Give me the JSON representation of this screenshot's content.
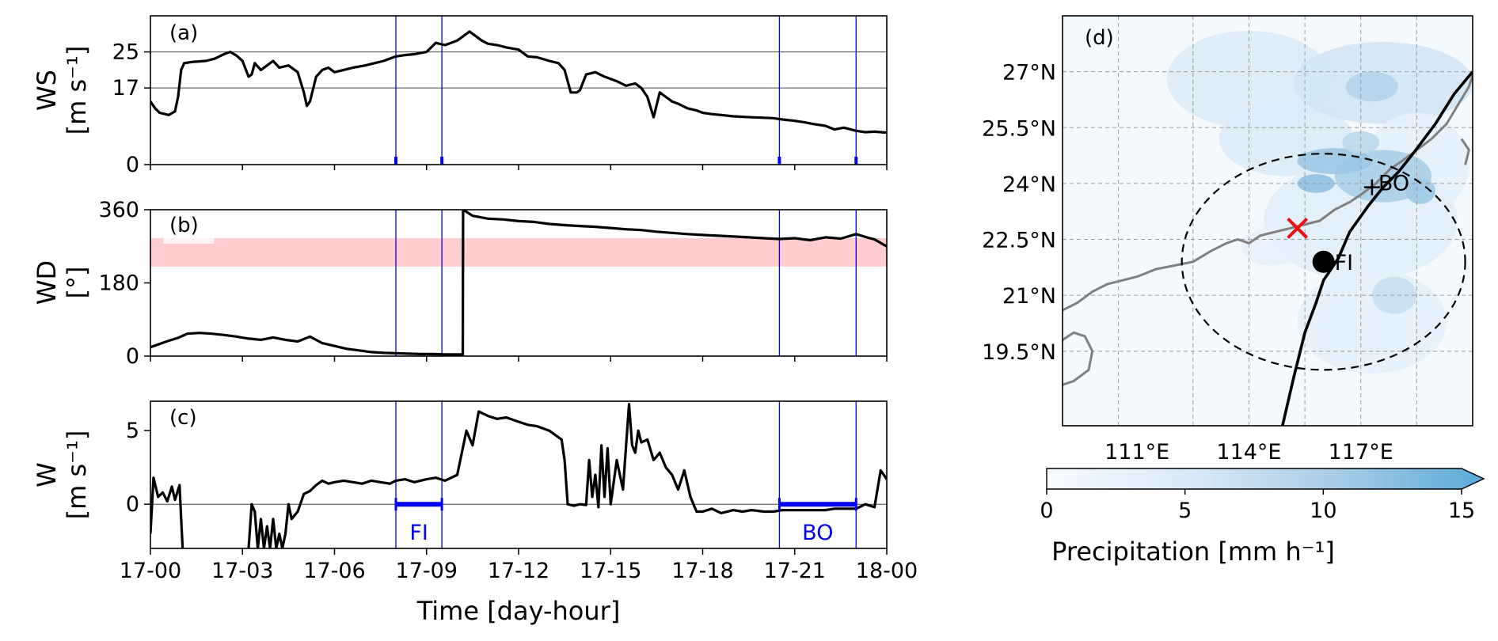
{
  "chart_data": [
    {
      "type": "line",
      "panel_label": "(a)",
      "ylabel": [
        "WS",
        "[m s⁻¹]"
      ],
      "ylim": [
        0,
        33
      ],
      "yticks": [
        "0",
        "17",
        "25"
      ],
      "yticks_values": [
        0,
        17,
        25
      ],
      "hlines": [
        17,
        25
      ],
      "x_range": [
        0,
        24
      ],
      "series": [
        {
          "x": [
            0,
            0.15,
            0.3,
            0.6,
            0.8,
            0.9,
            1.0,
            1.1,
            1.4,
            1.8,
            2.1,
            2.4,
            2.6,
            2.8,
            3.0,
            3.2,
            3.3,
            3.4,
            3.6,
            3.8,
            4.0,
            4.2,
            4.5,
            4.8,
            5.0,
            5.1,
            5.2,
            5.4,
            5.6,
            5.8,
            6.0,
            6.3,
            6.6,
            7.0,
            7.3,
            7.6,
            8.0,
            8.3,
            8.6,
            9.0,
            9.3,
            9.6,
            10.0,
            10.2,
            10.4,
            10.6,
            10.8,
            11.0,
            11.3,
            11.6,
            12.0,
            12.3,
            12.6,
            13.0,
            13.3,
            13.5,
            13.7,
            13.9,
            14.0,
            14.2,
            14.5,
            14.8,
            15.0,
            15.2,
            15.5,
            15.8,
            16.0,
            16.2,
            16.4,
            16.6,
            16.8,
            17.0,
            17.2,
            17.5,
            17.8,
            18.0,
            18.3,
            18.6,
            19.0,
            19.3,
            19.6,
            20.0,
            20.3,
            20.6,
            21.0,
            21.3,
            21.6,
            22.0,
            22.3,
            22.6,
            23.0,
            23.3,
            23.6,
            24.0
          ],
          "y": [
            14,
            12.5,
            11.5,
            11,
            11.8,
            15,
            21,
            22.5,
            22.8,
            23,
            23.5,
            24.5,
            25,
            24.2,
            23,
            19.5,
            20,
            22.5,
            21,
            22,
            23,
            21.5,
            22,
            20.5,
            16,
            13,
            14,
            19.5,
            21,
            21.5,
            20.5,
            21,
            21.5,
            22,
            22.5,
            23,
            24,
            24.3,
            24.5,
            25,
            27,
            26.5,
            27.5,
            28.5,
            29.5,
            28.5,
            27.5,
            26.8,
            26.5,
            26,
            25.5,
            24,
            23.8,
            23,
            22.5,
            21,
            16,
            16,
            16.5,
            20,
            20.5,
            19.5,
            19,
            18.5,
            17.5,
            18,
            17,
            15,
            10.5,
            16,
            15,
            14,
            13.5,
            12.5,
            12,
            11.5,
            11.2,
            11,
            10.7,
            10.6,
            10.5,
            10.4,
            10.3,
            10.0,
            9.7,
            9.4,
            9.0,
            8.6,
            7.8,
            8.2,
            7.5,
            7.2,
            7.3,
            7.1
          ]
        }
      ]
    },
    {
      "type": "line",
      "panel_label": "(b)",
      "ylabel": [
        "WD",
        "[°]"
      ],
      "ylim": [
        0,
        360
      ],
      "yticks": [
        "0",
        "180",
        "360"
      ],
      "yticks_values": [
        0,
        180,
        360
      ],
      "shaded_band": [
        220,
        290
      ],
      "x_range": [
        0,
        24
      ],
      "series": [
        {
          "x": [
            0,
            0.3,
            0.6,
            0.9,
            1.2,
            1.6,
            2.0,
            2.4,
            2.8,
            3.2,
            3.6,
            4.0,
            4.4,
            4.8,
            5.2,
            5.6,
            6.0,
            6.4,
            6.8,
            7.2,
            7.6,
            8.0,
            8.4,
            8.8,
            9.2,
            9.6,
            10.0,
            10.18,
            10.19,
            10.5,
            11.0,
            11.5,
            12.0,
            12.5,
            13.0,
            13.5,
            14.0,
            14.5,
            15.0,
            15.5,
            16.0,
            16.5,
            17.0,
            17.5,
            18.0,
            18.5,
            19.0,
            19.5,
            20.0,
            20.5,
            21.0,
            21.5,
            22.0,
            22.5,
            23.0,
            23.3,
            23.6,
            24.0
          ],
          "y": [
            22,
            30,
            38,
            45,
            55,
            57,
            55,
            52,
            48,
            43,
            40,
            46,
            40,
            36,
            48,
            32,
            25,
            18,
            14,
            10,
            8,
            7,
            6,
            5,
            5,
            4,
            4,
            4,
            360,
            345,
            338,
            336,
            332,
            330,
            325,
            322,
            320,
            318,
            315,
            312,
            310,
            306,
            303,
            300,
            298,
            296,
            294,
            292,
            290,
            288,
            290,
            285,
            292,
            289,
            300,
            293,
            287,
            270
          ]
        }
      ]
    },
    {
      "type": "line",
      "panel_label": "(c)",
      "ylabel": [
        "W",
        "[m s⁻¹]"
      ],
      "ylim": [
        -3,
        7
      ],
      "yticks": [
        "0",
        "5"
      ],
      "yticks_values": [
        0,
        5
      ],
      "hlines": [
        0
      ],
      "x_range": [
        0,
        24
      ],
      "xticks": [
        "17-00",
        "17-03",
        "17-06",
        "17-09",
        "17-12",
        "17-15",
        "17-18",
        "17-21",
        "18-00"
      ],
      "xlabel": "Time [day-hour]",
      "series": [
        {
          "x": [
            0,
            0.1,
            0.25,
            0.4,
            0.55,
            0.7,
            0.8,
            0.95,
            1.0,
            1.05,
            3.2,
            3.3,
            3.4,
            3.5,
            3.6,
            3.7,
            3.8,
            3.9,
            4.0,
            4.1,
            4.2,
            4.3,
            4.4,
            4.5,
            4.6,
            4.8,
            5.0,
            5.2,
            5.4,
            5.6,
            5.8,
            6.0,
            6.3,
            6.6,
            6.9,
            7.2,
            7.5,
            7.8,
            8.0,
            8.3,
            8.6,
            9.0,
            9.3,
            9.6,
            10.0,
            10.3,
            10.5,
            10.7,
            11.0,
            11.3,
            11.6,
            12.0,
            12.3,
            12.6,
            13.0,
            13.2,
            13.4,
            13.5,
            13.6,
            13.8,
            14.0,
            14.2,
            14.3,
            14.4,
            14.5,
            14.6,
            14.7,
            14.8,
            14.9,
            15.0,
            15.2,
            15.4,
            15.6,
            15.7,
            15.8,
            15.9,
            16.0,
            16.2,
            16.4,
            16.6,
            16.8,
            17.0,
            17.2,
            17.4,
            17.6,
            17.8,
            18.0,
            18.3,
            18.6,
            19.0,
            19.3,
            19.6,
            20.0,
            20.3,
            20.6,
            21.0,
            21.3,
            21.6,
            22.0,
            22.3,
            22.6,
            23.0,
            23.3,
            23.6,
            23.8,
            24.0
          ],
          "y": [
            -2,
            1.8,
            0.5,
            0.8,
            0.2,
            1.2,
            0.3,
            1.3,
            -1,
            -3,
            -3,
            0,
            -0.5,
            -3,
            -1,
            -3,
            -1.5,
            -3,
            -1,
            -3,
            -2,
            -3,
            -2,
            0,
            -1,
            -0.5,
            0.7,
            0.9,
            1.3,
            1.6,
            1.4,
            1.5,
            1.6,
            1.5,
            1.4,
            1.6,
            1.5,
            1.4,
            1.6,
            1.7,
            1.5,
            1.7,
            1.8,
            1.6,
            2.0,
            5.0,
            4.0,
            6.3,
            6.0,
            5.8,
            5.9,
            5.6,
            5.4,
            5.3,
            5.0,
            4.7,
            4.4,
            3.0,
            0.0,
            -0.1,
            0.0,
            -0.05,
            3.0,
            0.5,
            2.0,
            -0.2,
            4.0,
            0.5,
            3.8,
            0.0,
            3.0,
            1.0,
            6.8,
            4.0,
            3.5,
            5.0,
            4.2,
            4.4,
            3.0,
            3.5,
            2.5,
            2.0,
            1.0,
            2.3,
            0.5,
            -0.5,
            -0.5,
            -0.3,
            -0.6,
            -0.4,
            -0.5,
            -0.4,
            -0.5,
            -0.5,
            -0.4,
            -0.4,
            -0.4,
            -0.4,
            -0.4,
            -0.3,
            -0.3,
            -0.3,
            0.0,
            -0.2,
            2.3,
            1.7
          ]
        }
      ]
    },
    {
      "type": "heatmap",
      "panel_label": "(d)",
      "lon_range": [
        109,
        120
      ],
      "lat_range": [
        17.5,
        28.5
      ],
      "xticks": [
        "111°E",
        "114°E",
        "117°E"
      ],
      "xticks_values": [
        111,
        114,
        117
      ],
      "yticks": [
        "19.5°N",
        "21°N",
        "22.5°N",
        "24°N",
        "25.5°N",
        "27°N"
      ],
      "yticks_values": [
        19.5,
        21,
        22.5,
        24,
        25.5,
        27
      ],
      "colorbar": {
        "label": "Precipitation [mm h⁻¹]",
        "ticks": [
          "0",
          "5",
          "10",
          "15"
        ],
        "ticks_values": [
          0,
          5,
          10,
          15
        ],
        "range": [
          0,
          15
        ],
        "extend": "max"
      },
      "track": {
        "lon": [
          114.9,
          115.2,
          115.5,
          115.8,
          116.0,
          116.4,
          116.7,
          117.2,
          117.6,
          118.0,
          118.4,
          119.0,
          119.5,
          120.0
        ],
        "lat": [
          17.5,
          18.8,
          20.0,
          20.8,
          21.4,
          22.0,
          22.7,
          23.4,
          23.9,
          24.3,
          24.8,
          25.6,
          26.4,
          27.0
        ]
      },
      "markers": [
        {
          "label": "FI",
          "lon": 116.0,
          "lat": 21.9
        },
        {
          "label": "BO",
          "lon": 117.3,
          "lat": 23.9
        },
        {
          "label": "",
          "lon": 115.3,
          "lat": 22.8
        }
      ],
      "circle": {
        "center": [
          116.0,
          21.9
        ],
        "radius_lon": 3.8,
        "radius_lat": 2.9
      }
    }
  ],
  "periods": [
    {
      "label": "FI",
      "start": 8.0,
      "end": 9.5
    },
    {
      "label": "BO",
      "start": 20.5,
      "end": 23.0
    }
  ],
  "colors": {
    "line": "#000000",
    "period": "#0000ee",
    "band": "#ffc4c4",
    "cross": "#e81010",
    "coast": "#808080",
    "precip_high": "#5aaad8",
    "precip_low": "#f4f9fe"
  }
}
